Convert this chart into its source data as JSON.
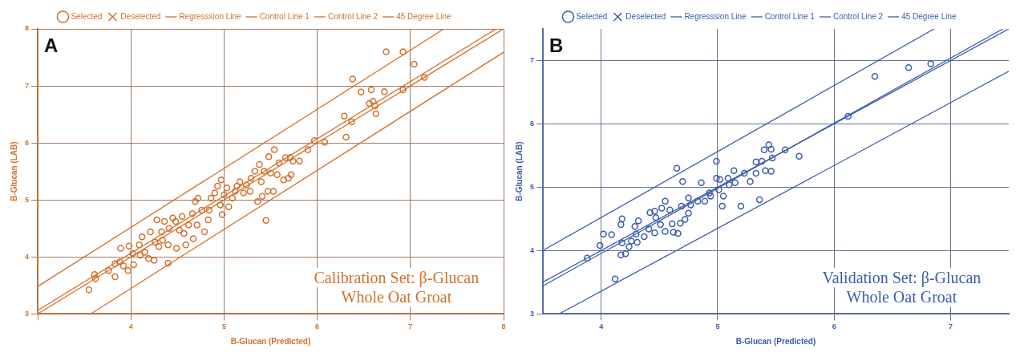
{
  "chart_data": [
    {
      "type": "scatter",
      "xlabel": "B-Glucan (Predicted)",
      "ylabel": "B-Glucan (LAB)",
      "xlim": [
        3,
        8
      ],
      "ylim": [
        3,
        8
      ],
      "xticks": [
        {
          "value": 3,
          "label": null
        },
        4,
        5,
        6,
        7,
        8
      ],
      "yticks": [
        3,
        4,
        5,
        6,
        7,
        8
      ],
      "grid": true,
      "legend": "top",
      "annotations": [
        "A",
        "Calibration Set: β-Glucan",
        "Whole Oat Groat"
      ],
      "series": [
        {
          "name": "Selected",
          "type": "scatter",
          "marker": "circle",
          "color": "#d2702c",
          "x": [
            3.55,
            3.61,
            3.62,
            3.76,
            3.83,
            3.83,
            3.88,
            3.89,
            3.92,
            3.97,
            3.98,
            4.02,
            4.03,
            4.09,
            4.1,
            4.15,
            4.19,
            4.12,
            4.21,
            4.25,
            4.26,
            4.3,
            4.28,
            4.33,
            4.34,
            4.36,
            4.4,
            4.4,
            4.41,
            4.45,
            4.48,
            4.49,
            4.52,
            4.55,
            4.57,
            4.59,
            4.62,
            4.66,
            4.67,
            4.69,
            4.71,
            4.72,
            4.76,
            4.79,
            4.83,
            4.84,
            4.86,
            4.9,
            4.93,
            4.96,
            4.97,
            4.98,
            5.0,
            5.03,
            5.05,
            5.09,
            5.12,
            5.14,
            5.17,
            5.21,
            5.24,
            5.28,
            5.29,
            5.33,
            5.36,
            5.38,
            5.4,
            5.41,
            5.43,
            5.45,
            5.47,
            5.48,
            5.5,
            5.53,
            5.54,
            5.57,
            5.59,
            5.64,
            5.66,
            5.69,
            5.71,
            5.72,
            5.74,
            5.81,
            5.9,
            5.97,
            6.08,
            6.29,
            6.31,
            6.37,
            6.38,
            6.47,
            6.56,
            6.58,
            6.6,
            6.62,
            6.63,
            6.72,
            6.74,
            6.92,
            6.92,
            7.04,
            7.15
          ],
          "values": [
            3.42,
            3.69,
            3.62,
            3.76,
            3.88,
            3.65,
            3.91,
            4.15,
            3.84,
            3.76,
            4.19,
            4.06,
            3.86,
            4.21,
            4.03,
            4.08,
            3.97,
            4.35,
            4.44,
            3.94,
            4.26,
            4.18,
            4.65,
            4.44,
            4.29,
            4.62,
            3.89,
            4.21,
            4.5,
            4.68,
            4.62,
            4.15,
            4.47,
            4.71,
            4.41,
            4.21,
            4.56,
            4.76,
            4.32,
            4.97,
            4.56,
            5.03,
            4.82,
            4.44,
            4.65,
            4.82,
            5.03,
            5.12,
            5.24,
            4.91,
            5.35,
            4.74,
            5.09,
            5.21,
            4.88,
            5.03,
            5.15,
            5.24,
            5.32,
            5.12,
            5.26,
            5.15,
            5.38,
            5.5,
            4.97,
            5.62,
            5.32,
            5.06,
            5.5,
            4.64,
            5.15,
            5.76,
            5.47,
            5.15,
            5.88,
            5.44,
            5.65,
            5.35,
            5.74,
            5.38,
            5.74,
            5.44,
            5.68,
            5.68,
            5.88,
            6.04,
            6.01,
            6.47,
            6.1,
            6.37,
            7.12,
            6.89,
            6.69,
            6.93,
            6.73,
            6.65,
            6.51,
            6.9,
            7.6,
            6.93,
            7.6,
            7.38,
            7.15
          ]
        },
        {
          "name": "Deselected",
          "type": "scatter",
          "marker": "cross",
          "color": "#d2702c"
        },
        {
          "name": "Regresssion Line",
          "type": "line",
          "marker": "none",
          "color": "#d2702c",
          "x": [
            3,
            7.92
          ],
          "values": [
            3.06,
            8
          ]
        },
        {
          "name": "Control Line 1",
          "type": "line",
          "marker": "none",
          "color": "#d2702c",
          "x": [
            3,
            7.36
          ],
          "values": [
            3.48,
            8
          ]
        },
        {
          "name": "Control Line 2",
          "type": "line",
          "marker": "none",
          "color": "#d2702c",
          "x": [
            3.57,
            8
          ],
          "values": [
            3,
            7.59
          ]
        },
        {
          "name": "45 Degree Line",
          "type": "line",
          "marker": "none",
          "color": "#d2702c",
          "x": [
            3,
            8
          ],
          "values": [
            3,
            8
          ]
        }
      ]
    },
    {
      "type": "scatter",
      "xlabel": "B-Glucan (Predicted)",
      "ylabel": "B-Glucan (LAB)",
      "xlim": [
        3.5,
        7.5
      ],
      "ylim": [
        3,
        7.5
      ],
      "xticks": [
        4,
        5,
        6,
        7
      ],
      "yticks": [
        3,
        4,
        5,
        6,
        7
      ],
      "grid": true,
      "legend": "top",
      "annotations": [
        "B",
        "Validation Set: β-Glucan",
        "Whole Oat Groat"
      ],
      "series": [
        {
          "name": "Selected",
          "type": "scatter",
          "marker": "circle",
          "color": "#3a5cae",
          "x": [
            3.88,
            3.99,
            4.02,
            4.09,
            4.12,
            4.17,
            4.18,
            4.18,
            4.17,
            4.21,
            4.24,
            4.26,
            4.29,
            4.3,
            4.31,
            4.32,
            4.37,
            4.41,
            4.42,
            4.46,
            4.46,
            4.47,
            4.51,
            4.52,
            4.55,
            4.55,
            4.59,
            4.61,
            4.62,
            4.65,
            4.66,
            4.68,
            4.69,
            4.7,
            4.72,
            4.75,
            4.75,
            4.77,
            4.83,
            4.86,
            4.89,
            4.93,
            4.94,
            4.99,
            4.99,
            5.01,
            5.02,
            5.04,
            5.05,
            5.09,
            5.1,
            5.14,
            5.15,
            5.2,
            5.23,
            5.28,
            5.33,
            5.33,
            5.36,
            5.38,
            5.4,
            5.41,
            5.44,
            5.46,
            5.47,
            5.46,
            5.58,
            5.7,
            6.12,
            6.35,
            6.64,
            6.83
          ],
          "values": [
            3.88,
            4.08,
            4.26,
            4.25,
            3.55,
            4.41,
            4.5,
            4.12,
            3.93,
            3.95,
            4.06,
            4.15,
            4.38,
            4.26,
            4.13,
            4.47,
            4.22,
            4.34,
            4.6,
            4.62,
            4.28,
            4.52,
            4.41,
            4.67,
            4.78,
            4.3,
            4.64,
            4.42,
            4.29,
            5.3,
            4.27,
            4.43,
            4.7,
            5.09,
            4.49,
            4.83,
            4.59,
            4.72,
            4.78,
            5.07,
            4.78,
            4.91,
            4.86,
            5.41,
            5.14,
            4.96,
            5.12,
            4.7,
            4.86,
            5.14,
            5.04,
            5.26,
            5.07,
            4.7,
            5.22,
            5.09,
            5.22,
            5.4,
            4.8,
            5.41,
            5.59,
            5.26,
            5.67,
            5.6,
            5.46,
            5.25,
            5.59,
            5.49,
            6.12,
            6.75,
            6.89,
            6.95
          ]
        },
        {
          "name": "Deselected",
          "type": "scatter",
          "marker": "cross",
          "color": "#3a5cae"
        },
        {
          "name": "Regresssion Line",
          "type": "line",
          "marker": "none",
          "color": "#3a5cae",
          "x": [
            3.5,
            7.45
          ],
          "values": [
            3.44,
            7.5
          ]
        },
        {
          "name": "Control Line 1",
          "type": "line",
          "marker": "none",
          "color": "#3a5cae",
          "x": [
            3.5,
            6.86
          ],
          "values": [
            4.0,
            7.5
          ]
        },
        {
          "name": "Control Line 2",
          "type": "line",
          "marker": "none",
          "color": "#3a5cae",
          "x": [
            3.64,
            7.5
          ],
          "values": [
            3,
            6.83
          ]
        },
        {
          "name": "45 Degree Line",
          "type": "line",
          "marker": "none",
          "color": "#3a5cae",
          "x": [
            3.5,
            7.5
          ],
          "values": [
            3.5,
            7.5
          ]
        }
      ]
    }
  ]
}
